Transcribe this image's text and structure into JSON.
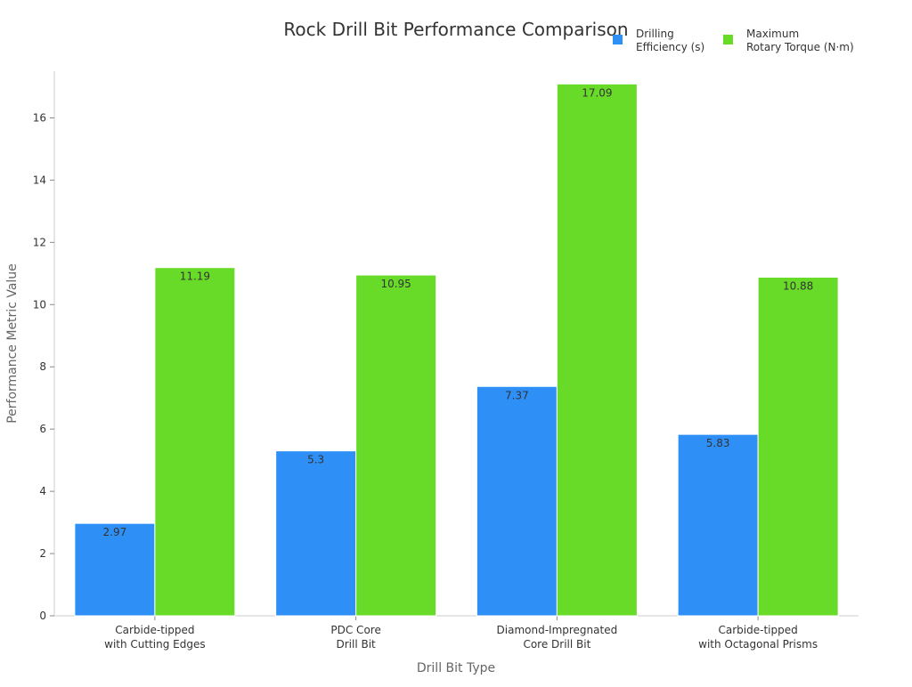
{
  "chart_data": {
    "type": "bar",
    "title": "Rock Drill Bit Performance Comparison",
    "xlabel": "Drill Bit Type",
    "ylabel": "Performance Metric Value",
    "categories": [
      [
        "Carbide-tipped",
        "with Cutting Edges"
      ],
      [
        "PDC Core",
        "Drill Bit"
      ],
      [
        "Diamond-Impregnated",
        "Core Drill Bit"
      ],
      [
        "Carbide-tipped",
        "with Octagonal Prisms"
      ]
    ],
    "series": [
      {
        "name": [
          "Drilling",
          "Efficiency (s)"
        ],
        "color": "#2e90f7",
        "values": [
          2.97,
          5.3,
          7.37,
          5.83
        ],
        "labels": [
          "2.97",
          "5.3",
          "7.37",
          "5.83"
        ]
      },
      {
        "name": [
          "Maximum",
          "Rotary Torque (N·m)"
        ],
        "color": "#68db28",
        "values": [
          11.19,
          10.95,
          17.09,
          10.88
        ],
        "labels": [
          "11.19",
          "10.95",
          "17.09",
          "10.88"
        ]
      }
    ],
    "ylim": [
      0,
      17.5
    ],
    "yticks": [
      0,
      2,
      4,
      6,
      8,
      10,
      12,
      14,
      16
    ],
    "grid": false,
    "legend": "top-right"
  }
}
